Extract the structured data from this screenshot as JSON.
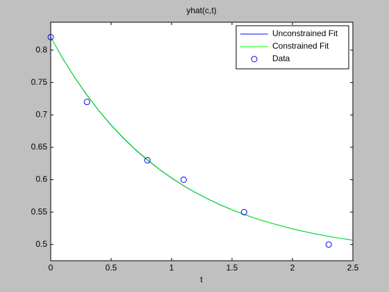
{
  "chart_data": {
    "type": "line",
    "title": "yhat(c,t)",
    "x_label": "t",
    "xlim": [
      0,
      2.5
    ],
    "xticks": [
      0,
      0.5,
      1,
      1.5,
      2,
      2.5
    ],
    "ylim": [
      0.475,
      0.843
    ],
    "yticks": [
      0.5,
      0.55,
      0.6,
      0.65,
      0.7,
      0.75,
      0.8
    ],
    "legend": "northeast",
    "series": [
      {
        "name": "Unconstrained Fit",
        "color": "#0000ff",
        "line": true,
        "marker": null,
        "x": [
          0,
          0.1,
          0.2,
          0.3,
          0.4,
          0.5,
          0.6,
          0.7,
          0.8,
          0.9,
          1,
          1.1,
          1.2,
          1.3,
          1.4,
          1.5,
          1.6,
          1.7,
          1.8,
          1.9,
          2,
          2.1,
          2.2,
          2.3,
          2.4,
          2.5
        ],
        "values": [
          0.82,
          0.787,
          0.7573,
          0.7304,
          0.7061,
          0.6842,
          0.6644,
          0.6465,
          0.6303,
          0.6158,
          0.6026,
          0.5907,
          0.58,
          0.5703,
          0.5615,
          0.5536,
          0.5465,
          0.54,
          0.5342,
          0.529,
          0.5242,
          0.5199,
          0.516,
          0.5126,
          0.5094,
          0.5066
        ]
      },
      {
        "name": "Constrained Fit",
        "color": "#00ff00",
        "line": true,
        "marker": null,
        "x": [
          0,
          0.1,
          0.2,
          0.3,
          0.4,
          0.5,
          0.6,
          0.7,
          0.8,
          0.9,
          1,
          1.1,
          1.2,
          1.3,
          1.4,
          1.5,
          1.6,
          1.7,
          1.8,
          1.9,
          2,
          2.1,
          2.2,
          2.3,
          2.4,
          2.5
        ],
        "values": [
          0.82,
          0.7873,
          0.7577,
          0.7309,
          0.7066,
          0.6847,
          0.6649,
          0.647,
          0.6308,
          0.6162,
          0.603,
          0.591,
          0.5802,
          0.5705,
          0.5617,
          0.5537,
          0.5466,
          0.5401,
          0.5343,
          0.529,
          0.5243,
          0.52,
          0.5161,
          0.5126,
          0.5094,
          0.5065
        ]
      },
      {
        "name": "Data",
        "color": "#0000ff",
        "line": false,
        "marker": "o",
        "x": [
          0,
          0.3,
          0.8,
          1.1,
          1.6,
          2.3
        ],
        "values": [
          0.82,
          0.72,
          0.63,
          0.6,
          0.55,
          0.5
        ]
      }
    ]
  }
}
